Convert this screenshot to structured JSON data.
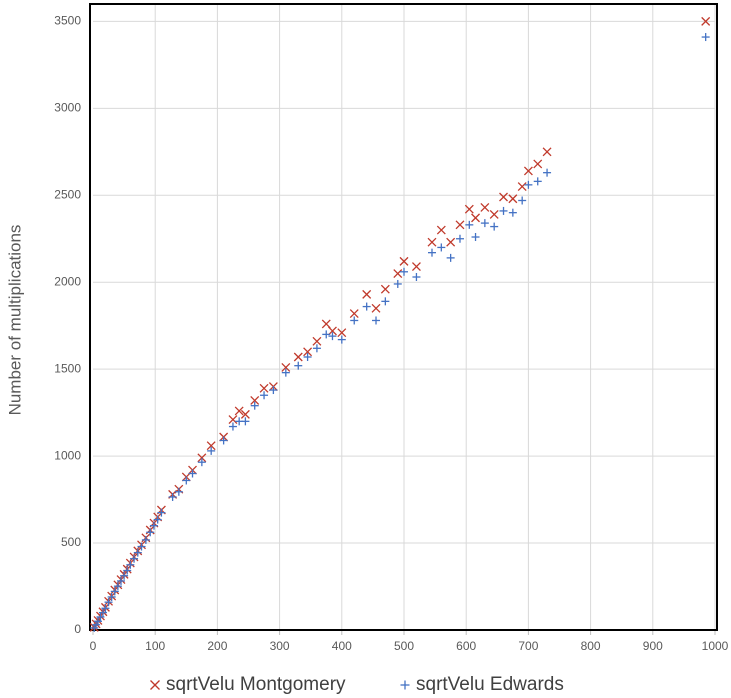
{
  "chart_data": {
    "type": "scatter",
    "y_label": "Number of multiplications",
    "xlim": [
      0,
      1000
    ],
    "xticks": [
      0,
      100,
      200,
      300,
      400,
      500,
      600,
      700,
      800,
      900,
      1000
    ],
    "ylim": [
      0,
      3600
    ],
    "yticks": [
      0,
      500,
      1000,
      1500,
      2000,
      2500,
      3000,
      3500
    ],
    "grid": true,
    "legend": "bottom",
    "series": [
      {
        "name": "sqrtVelu Montgomery",
        "color": "#c0392b",
        "marker": "x",
        "x": [
          2,
          5,
          8,
          12,
          16,
          20,
          25,
          30,
          35,
          40,
          45,
          50,
          55,
          60,
          66,
          72,
          78,
          85,
          92,
          98,
          104,
          110,
          128,
          138,
          150,
          160,
          175,
          190,
          210,
          225,
          235,
          245,
          260,
          275,
          290,
          310,
          330,
          345,
          360,
          375,
          385,
          400,
          420,
          440,
          455,
          470,
          490,
          500,
          520,
          545,
          560,
          575,
          590,
          605,
          615,
          630,
          645,
          660,
          675,
          690,
          700,
          715,
          730,
          985
        ],
        "values": [
          15,
          35,
          55,
          80,
          105,
          130,
          165,
          195,
          230,
          260,
          290,
          320,
          350,
          385,
          420,
          455,
          490,
          530,
          575,
          615,
          650,
          690,
          780,
          810,
          880,
          920,
          990,
          1060,
          1110,
          1210,
          1260,
          1240,
          1320,
          1390,
          1400,
          1510,
          1570,
          1600,
          1660,
          1760,
          1720,
          1710,
          1820,
          1930,
          1850,
          1960,
          2050,
          2120,
          2090,
          2230,
          2300,
          2230,
          2330,
          2420,
          2370,
          2430,
          2390,
          2490,
          2480,
          2550,
          2640,
          2680,
          2750,
          3500
        ]
      },
      {
        "name": "sqrtVelu Edwards",
        "color": "#4472c4",
        "marker": "+",
        "x": [
          2,
          5,
          8,
          12,
          16,
          20,
          25,
          30,
          35,
          40,
          45,
          50,
          55,
          60,
          66,
          72,
          78,
          85,
          92,
          98,
          104,
          110,
          128,
          138,
          150,
          160,
          175,
          190,
          210,
          225,
          235,
          245,
          260,
          275,
          290,
          310,
          330,
          345,
          360,
          375,
          385,
          400,
          420,
          440,
          455,
          470,
          490,
          500,
          520,
          545,
          560,
          575,
          590,
          605,
          615,
          630,
          645,
          660,
          675,
          690,
          700,
          715,
          730,
          985
        ],
        "values": [
          12,
          30,
          50,
          75,
          100,
          125,
          160,
          190,
          222,
          252,
          282,
          312,
          342,
          375,
          410,
          445,
          480,
          518,
          562,
          600,
          635,
          675,
          765,
          795,
          860,
          900,
          965,
          1030,
          1090,
          1170,
          1200,
          1200,
          1290,
          1350,
          1380,
          1480,
          1520,
          1570,
          1620,
          1700,
          1690,
          1670,
          1780,
          1860,
          1780,
          1890,
          1990,
          2060,
          2030,
          2170,
          2200,
          2140,
          2250,
          2330,
          2260,
          2340,
          2320,
          2410,
          2400,
          2470,
          2560,
          2580,
          2630,
          3410
        ]
      }
    ]
  }
}
